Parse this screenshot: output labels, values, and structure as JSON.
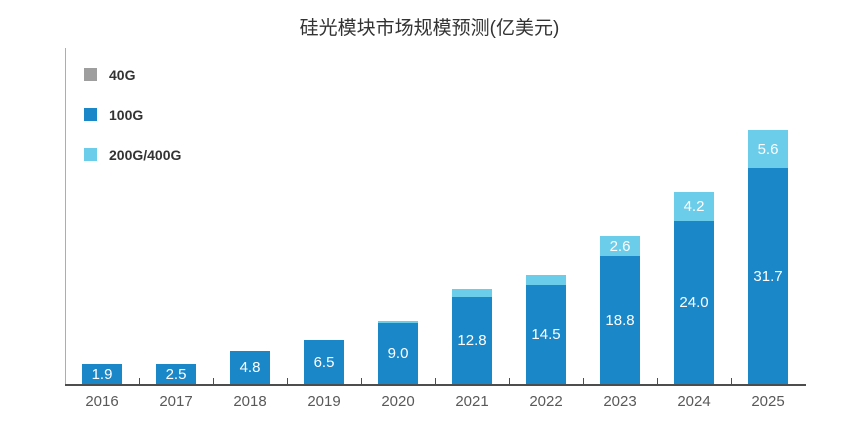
{
  "title": "硅光模块市场规模预测(亿美元)",
  "chart_data": {
    "type": "bar",
    "stacked": true,
    "title": "硅光模块市场规模预测(亿美元)",
    "categories": [
      "2016",
      "2017",
      "2018",
      "2019",
      "2020",
      "2021",
      "2022",
      "2023",
      "2024",
      "2025"
    ],
    "series": [
      {
        "name": "40G",
        "color": "#9e9e9e",
        "values": [
          0,
          0,
          0,
          0,
          0,
          0,
          0,
          0,
          0,
          0
        ],
        "labels": [
          "",
          "",
          "",
          "",
          "",
          "",
          "",
          "",
          "",
          ""
        ]
      },
      {
        "name": "100G",
        "color": "#1a87c9",
        "values": [
          1.9,
          2.5,
          4.8,
          6.5,
          9.0,
          12.8,
          14.5,
          18.8,
          24.0,
          31.7
        ],
        "labels": [
          "1.9",
          "2.5",
          "4.8",
          "6.5",
          "9.0",
          "12.8",
          "14.5",
          "18.8",
          "24.0",
          "31.7"
        ]
      },
      {
        "name": "200G/400G",
        "color": "#6bcde9",
        "values": [
          0,
          0,
          0,
          0,
          0.3,
          1.2,
          1.5,
          2.6,
          4.2,
          5.6
        ],
        "labels": [
          "",
          "",
          "",
          "",
          "",
          "",
          "",
          "2.6",
          "4.2",
          "5.6"
        ]
      }
    ],
    "legend_position": "top-left",
    "grid": false,
    "value_label_color": "#ffffff",
    "axis_color": "#4d4d4d"
  }
}
